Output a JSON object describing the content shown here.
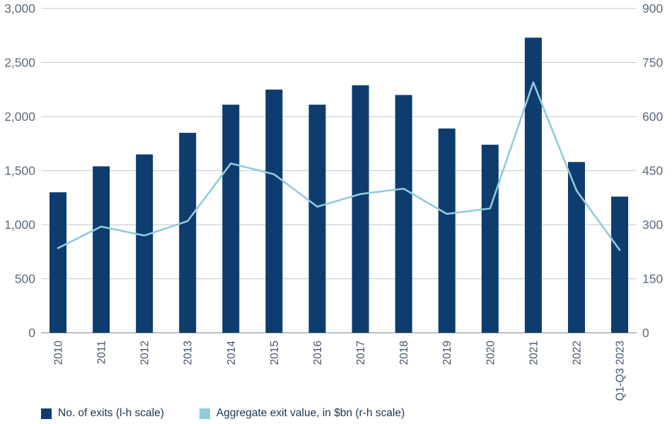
{
  "legend": {
    "exits_label": "No. of exits (l-h scale)",
    "value_label": "Aggregate exit value, in $bn (r-h scale)"
  },
  "colors": {
    "bar": "#0e3c6e",
    "line": "#8fcbdc",
    "grid": "#c5cacf",
    "baseline": "#a6acb3",
    "y_tick_text": "#5b6b7e",
    "x_tick_text": "#44546a",
    "legend_text": "#1d3553"
  },
  "chart_data": {
    "type": "bar+line combo",
    "title": "",
    "categories": [
      "2010",
      "2011",
      "2012",
      "2013",
      "2014",
      "2015",
      "2016",
      "2017",
      "2018",
      "2019",
      "2020",
      "2021",
      "2022",
      "Q1-Q3 2023"
    ],
    "series": [
      {
        "name": "No. of exits (l-h scale)",
        "type": "bar",
        "axis": "left",
        "values": [
          1300,
          1540,
          1650,
          1850,
          2110,
          2250,
          2110,
          2290,
          2200,
          1890,
          1740,
          2730,
          1580,
          1260
        ]
      },
      {
        "name": "Aggregate exit value, in $bn (r-h scale)",
        "type": "line",
        "axis": "right",
        "values": [
          235,
          295,
          270,
          310,
          470,
          440,
          350,
          385,
          400,
          330,
          345,
          695,
          395,
          230
        ]
      }
    ],
    "left_axis": {
      "min": 0,
      "max": 3000,
      "ticks": [
        "3,000",
        "2,500",
        "2,000",
        "1,500",
        "1,000",
        "500",
        "0"
      ]
    },
    "right_axis": {
      "min": 0,
      "max": 900,
      "ticks": [
        "900",
        "750",
        "600",
        "450",
        "300",
        "150",
        "0"
      ]
    },
    "grid": true,
    "x_labels_rotated": true,
    "legend_position": "bottom"
  }
}
